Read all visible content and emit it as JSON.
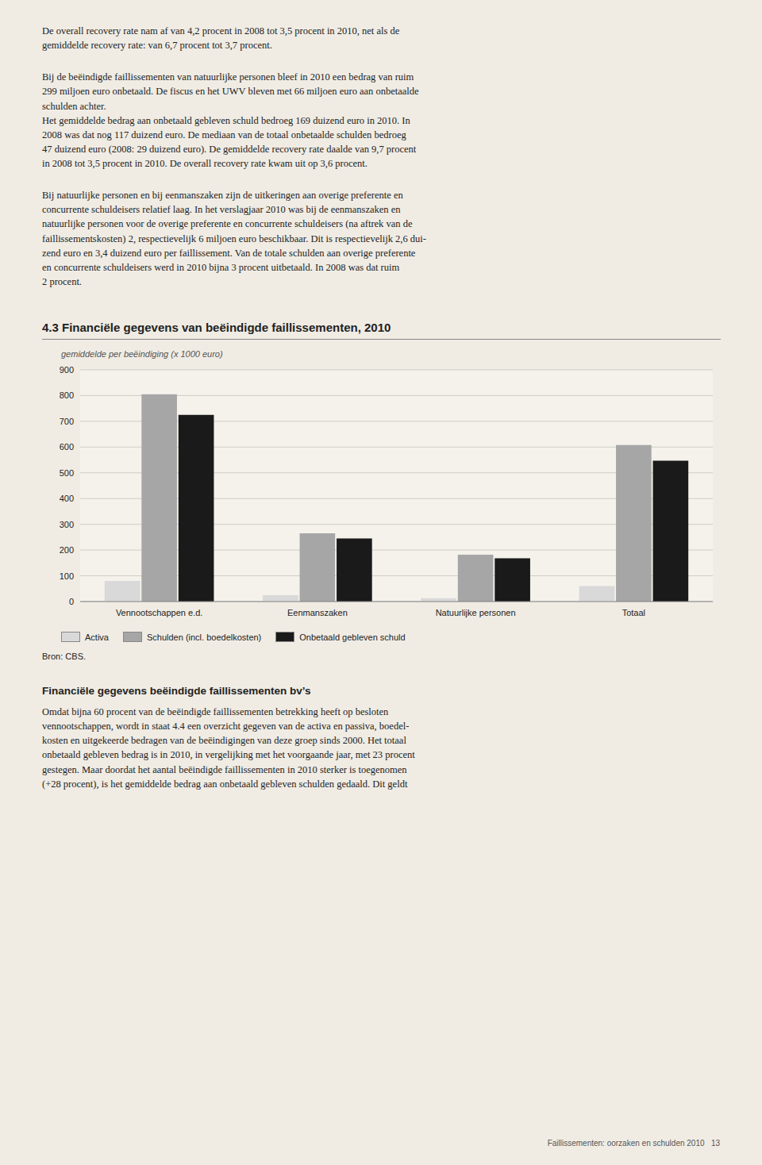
{
  "chart_data": {
    "type": "bar",
    "title": "4.3  Financiële gegevens van beëindigde faillissementen, 2010",
    "subtitle": "gemiddelde per beëindiging (x 1000 euro)",
    "categories": [
      "Vennootschappen e.d.",
      "Eenmanszaken",
      "Natuurlijke personen",
      "Totaal"
    ],
    "series": [
      {
        "name": "Activa",
        "color": "#d9d9d9",
        "values": [
          80,
          25,
          13,
          60
        ]
      },
      {
        "name": "Schulden (incl. boedelkosten)",
        "color": "#a6a6a6",
        "values": [
          805,
          265,
          182,
          608
        ]
      },
      {
        "name": "Onbetaald gebleven schuld",
        "color": "#1a1a1a",
        "values": [
          725,
          245,
          168,
          547
        ]
      }
    ],
    "ylim": [
      0,
      900
    ],
    "yticks": [
      0,
      100,
      200,
      300,
      400,
      500,
      600,
      700,
      800,
      900
    ],
    "grid": true,
    "legend": "bottom",
    "source": "Bron: CBS."
  },
  "text_blocks": [
    "De overall recovery rate nam af van 4,2 procent in 2008 tot 3,5 procent in 2010, net als de\ngemiddelde recovery rate: van 6,7 procent tot 3,7 procent.",
    "Bij de beëindigde faillissementen van natuurlijke personen bleef in 2010 een bedrag van ruim\n299 miljoen euro onbetaald. De fiscus en het UWV bleven met 66 miljoen euro aan onbetaalde\nschulden achter.\nHet gemiddelde bedrag aan onbetaald gebleven schuld bedroeg 169 duizend euro in 2010. In\n2008 was dat nog 117 duizend euro. De mediaan van de totaal onbetaalde schulden bedroeg\n47 duizend euro (2008: 29 duizend euro). De gemiddelde recovery rate daalde van 9,7 procent\nin 2008 tot 3,5 procent in 2010. De overall recovery rate kwam uit op 3,6 procent.",
    "Bij natuurlijke personen en bij eenmanszaken zijn de uitkeringen aan overige preferente en\nconcurrente schuldeisers relatief laag. In het verslagjaar 2010 was bij de eenmanszaken en\nnatuurlijke personen voor de overige preferente en concurrente schuldeisers (na aftrek van de\nfaillissementskosten) 2, respectievelijk 6 miljoen euro beschikbaar. Dit is respectievelijk 2,6 dui-\nzend euro en 3,4 duizend euro per faillissement. Van de totale schulden aan overige preferente\nen concurrente schuldeisers werd in 2010 bijna 3 procent uitbetaald. In 2008 was dat ruim\n2 procent."
  ],
  "bottom_title": "Financiële gegevens beëindigde faillissementen bv’s",
  "bottom_text": "Omdat bijna 60 procent van de beëindigde faillissementen betrekking heeft op besloten\nvennootschappen, wordt in staat 4.4 een overzicht gegeven van de activa en passiva, boedel-\nkosten en uitgekeerde bedragen van de beëindigingen van deze groep sinds 2000. Het totaal\nonbetaald gebleven bedrag is in 2010, in vergelijking met het voorgaande jaar, met 23 procent\ngestegen. Maar doordat het aantal beëindigde faillissementen in 2010 sterker is toegenomen\n(+28 procent), is het gemiddelde bedrag aan onbetaald gebleven schulden gedaald. Dit geldt",
  "footer": "Faillissementen: oorzaken en schulden 2010   13"
}
